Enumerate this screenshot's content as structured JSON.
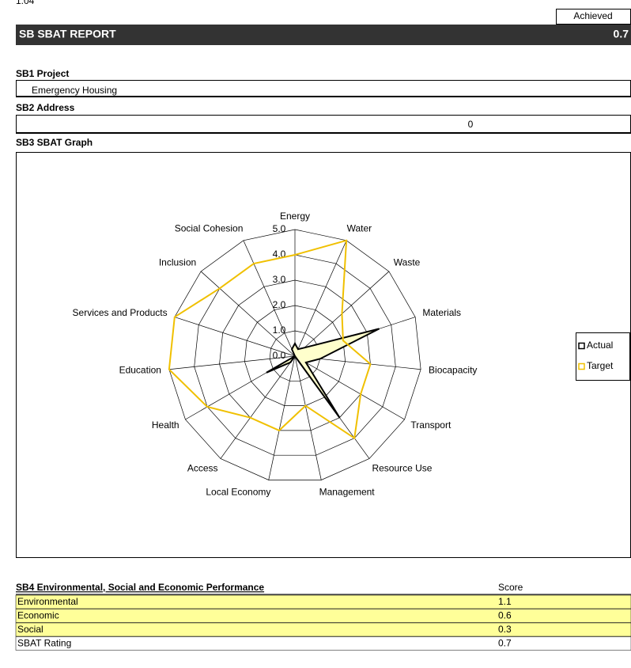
{
  "version": "1.04",
  "header": {
    "achieved_label": "Achieved",
    "title": "SB  SBAT REPORT",
    "score": 0.7
  },
  "project": {
    "label": "SB1  Project",
    "value": "Emergency Housing"
  },
  "address": {
    "label": "SB2  Address",
    "value": 0
  },
  "chart_data": {
    "type": "radar",
    "title": "SB3  SBAT Graph",
    "categories": [
      "Energy",
      "Water",
      "Waste",
      "Materials",
      "Biocapacity",
      "Transport",
      "Resource Use",
      "Management",
      "Local Economy",
      "Access",
      "Health",
      "Education",
      "Services and Products",
      "Inclusion",
      "Social Cohesion"
    ],
    "series": [
      {
        "name": "Actual",
        "color": "#000000",
        "fill": "#ffffcc",
        "values": [
          0.5,
          0.3,
          0.5,
          3.5,
          1.0,
          0.5,
          3.0,
          0.0,
          0.0,
          0.3,
          1.3,
          0.0,
          0.0,
          0.0,
          0.3
        ]
      },
      {
        "name": "Target",
        "color": "#f0c000",
        "values": [
          4.0,
          5.0,
          2.5,
          2.0,
          3.0,
          3.0,
          4.0,
          2.0,
          3.0,
          3.0,
          4.0,
          5.0,
          5.0,
          4.0,
          4.0
        ]
      }
    ],
    "ylim": [
      0,
      5
    ],
    "yticks": [
      {
        "value": 0,
        "label": "0.0"
      },
      {
        "value": 1,
        "label": "1.0"
      },
      {
        "value": 2,
        "label": "2.0"
      },
      {
        "value": 3,
        "label": "3.0"
      },
      {
        "value": 4,
        "label": "4.0"
      },
      {
        "value": 5,
        "label": "5.0"
      }
    ],
    "grid": true,
    "legend": "right"
  },
  "table": {
    "header": [
      "SB4  Environmental, Social and Economic Performance",
      "Score"
    ],
    "rows": [
      [
        "Environmental",
        1.1
      ],
      [
        "Economic",
        0.6
      ],
      [
        "Social",
        0.3
      ],
      [
        "SBAT Rating",
        0.7
      ]
    ]
  }
}
